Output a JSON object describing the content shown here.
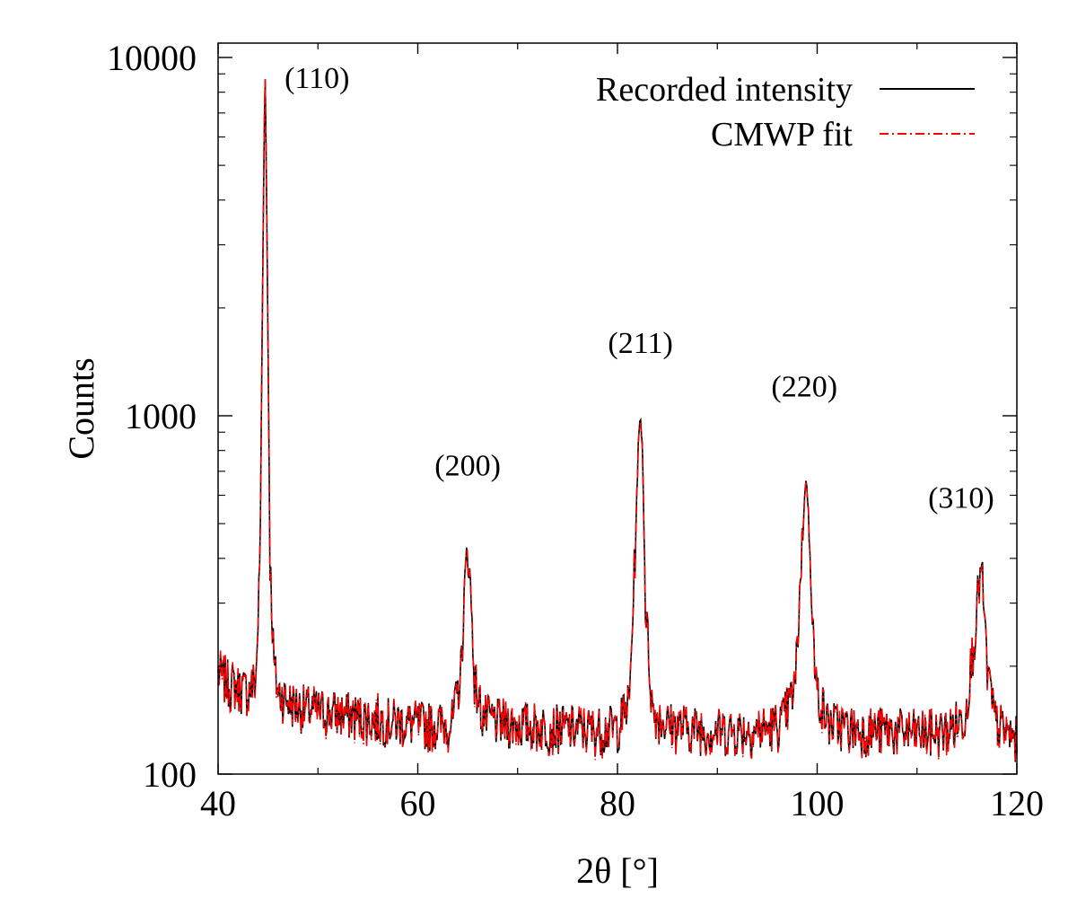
{
  "chart_data": {
    "type": "line",
    "xlabel": "2θ [°]",
    "ylabel": "Counts",
    "xlim": [
      40,
      120
    ],
    "ylim": [
      100,
      10000
    ],
    "y_scale": "log",
    "grid": false,
    "legend_position": "top-right",
    "x_ticks": [
      {
        "value": 40,
        "label": "40"
      },
      {
        "value": 60,
        "label": "60"
      },
      {
        "value": 80,
        "label": "80"
      },
      {
        "value": 100,
        "label": "100"
      },
      {
        "value": 120,
        "label": "120"
      }
    ],
    "y_ticks": [
      {
        "value": 100,
        "label": "100"
      },
      {
        "value": 1000,
        "label": "1000"
      },
      {
        "value": 10000,
        "label": "10000"
      }
    ],
    "peaks": [
      {
        "label": "(110)",
        "x": 44.7,
        "y": 10000
      },
      {
        "label": "(200)",
        "x": 65.0,
        "y": 440
      },
      {
        "label": "(211)",
        "x": 82.3,
        "y": 1000
      },
      {
        "label": "(220)",
        "x": 98.9,
        "y": 690
      },
      {
        "label": "(310)",
        "x": 116.4,
        "y": 370
      }
    ],
    "series": [
      {
        "name": "Recorded intensity",
        "color": "#000000",
        "style": "solid",
        "x": [
          40,
          41,
          42,
          43,
          43.8,
          44.2,
          44.5,
          44.7,
          44.9,
          45.2,
          45.6,
          46,
          47,
          48,
          50,
          52,
          54,
          56,
          58,
          60,
          62,
          63.5,
          64.3,
          64.7,
          65.0,
          65.3,
          65.7,
          66.5,
          68,
          70,
          72,
          74,
          76,
          78,
          80,
          81.2,
          81.8,
          82.1,
          82.3,
          82.5,
          82.8,
          83.5,
          85,
          87,
          89,
          91,
          93,
          95,
          96.5,
          97.8,
          98.5,
          98.9,
          99.3,
          99.8,
          101,
          103,
          105,
          107,
          109,
          111,
          113,
          114.8,
          115.8,
          116.2,
          116.4,
          116.6,
          117.0,
          117.8,
          119,
          120
        ],
        "y": [
          190,
          180,
          175,
          170,
          185,
          400,
          3000,
          10000,
          3200,
          400,
          200,
          170,
          160,
          155,
          150,
          148,
          145,
          142,
          140,
          138,
          137,
          140,
          190,
          330,
          440,
          320,
          180,
          145,
          140,
          138,
          136,
          135,
          134,
          133,
          135,
          160,
          450,
          850,
          1000,
          820,
          300,
          150,
          138,
          135,
          133,
          132,
          133,
          134,
          140,
          175,
          450,
          690,
          430,
          180,
          140,
          135,
          132,
          133,
          131,
          130,
          132,
          145,
          250,
          340,
          370,
          330,
          200,
          140,
          130,
          125
        ]
      },
      {
        "name": "CMWP fit",
        "color": "#ff0000",
        "style": "dash-dot",
        "x": [
          40,
          41,
          42,
          43,
          43.8,
          44.2,
          44.5,
          44.7,
          44.9,
          45.2,
          45.6,
          46,
          47,
          48,
          50,
          52,
          54,
          56,
          58,
          60,
          62,
          63.5,
          64.3,
          64.7,
          65.0,
          65.3,
          65.7,
          66.5,
          68,
          70,
          72,
          74,
          76,
          78,
          80,
          81.2,
          81.8,
          82.1,
          82.3,
          82.5,
          82.8,
          83.5,
          85,
          87,
          89,
          91,
          93,
          95,
          96.5,
          97.8,
          98.5,
          98.9,
          99.3,
          99.8,
          101,
          103,
          105,
          107,
          109,
          111,
          113,
          114.8,
          115.8,
          116.2,
          116.4,
          116.6,
          117.0,
          117.8,
          119,
          120
        ],
        "y": [
          190,
          180,
          175,
          170,
          185,
          400,
          3000,
          10000,
          3200,
          400,
          200,
          170,
          160,
          155,
          150,
          148,
          145,
          142,
          140,
          138,
          137,
          140,
          190,
          330,
          440,
          320,
          180,
          145,
          140,
          138,
          136,
          135,
          134,
          133,
          135,
          160,
          450,
          850,
          1000,
          820,
          300,
          150,
          138,
          135,
          133,
          132,
          133,
          134,
          140,
          175,
          450,
          690,
          430,
          180,
          140,
          135,
          132,
          133,
          131,
          130,
          132,
          145,
          250,
          340,
          370,
          330,
          200,
          140,
          130,
          125
        ]
      }
    ]
  }
}
